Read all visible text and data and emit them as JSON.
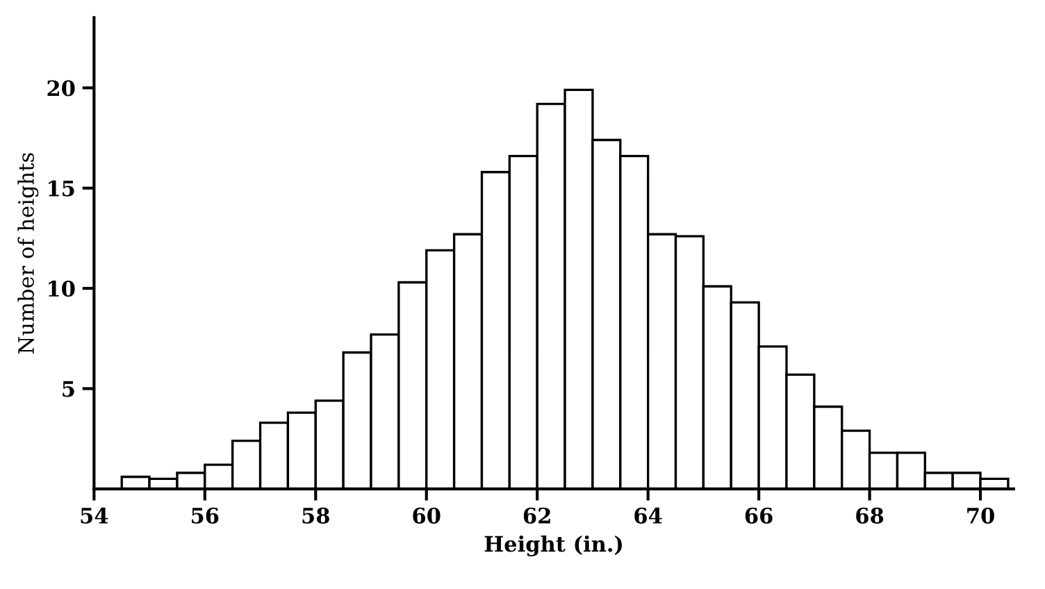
{
  "chart_data": {
    "type": "histogram",
    "xlabel": "Height (in.)",
    "ylabel": "Number of heights",
    "bins": [
      54.5,
      55,
      55.5,
      56,
      56.5,
      57,
      57.5,
      58,
      58.5,
      59,
      59.5,
      60,
      60.5,
      61,
      61.5,
      62,
      62.5,
      63,
      63.5,
      64,
      64.5,
      65,
      65.5,
      66,
      66.5,
      67,
      67.5,
      68,
      68.5,
      69,
      69.5,
      70,
      70.5
    ],
    "values": [
      0.6,
      0.5,
      0.8,
      1.2,
      2.4,
      3.3,
      3.8,
      4.4,
      6.8,
      7.7,
      10.3,
      11.9,
      12.7,
      15.8,
      16.6,
      19.2,
      19.9,
      17.4,
      16.6,
      12.7,
      12.6,
      10.1,
      9.3,
      7.1,
      5.7,
      4.1,
      2.9,
      1.8,
      1.8,
      0.8,
      0.8,
      0.5
    ],
    "color": "#ffffff",
    "xlim": [
      54,
      70.6
    ],
    "xticks": [
      54,
      56,
      58,
      60,
      62,
      64,
      66,
      68,
      70
    ],
    "ylim": [
      0,
      23.5
    ],
    "yticks": [
      5,
      10,
      15,
      20
    ],
    "grid": false
  }
}
